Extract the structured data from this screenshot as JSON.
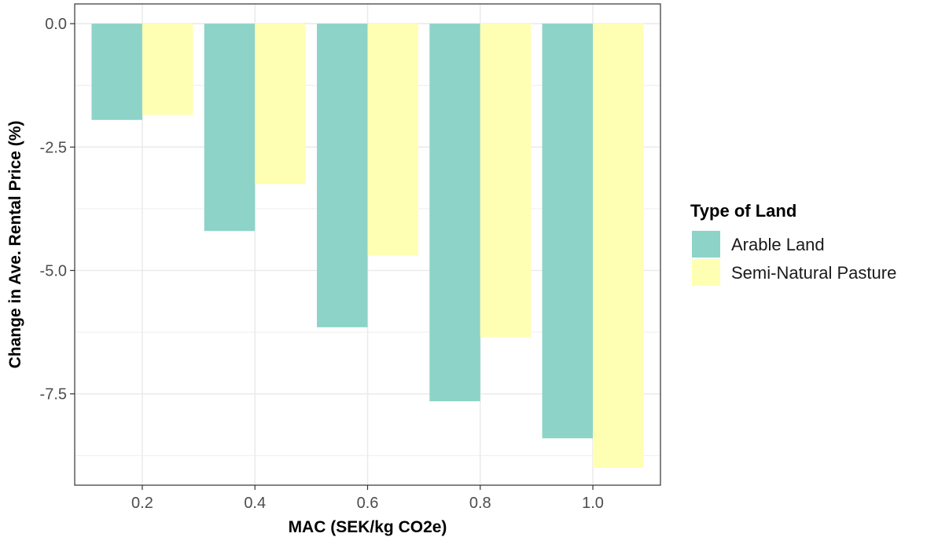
{
  "chart_data": {
    "type": "bar",
    "title": "",
    "xlabel": "MAC (SEK/kg CO2e)",
    "ylabel": "Change in Ave. Rental Price (%)",
    "categories": [
      "0.2",
      "0.4",
      "0.6",
      "0.8",
      "1.0"
    ],
    "ylim": [
      -9.35,
      0.4
    ],
    "y_ticks": [
      0.0,
      -2.5,
      -5.0,
      -7.5
    ],
    "y_tick_labels": [
      "0.0",
      "-2.5",
      "-5.0",
      "-7.5"
    ],
    "grid": true,
    "legend_position": "right",
    "legend_title": "Type of Land",
    "series": [
      {
        "name": "Arable Land",
        "color": "#8dd3c7",
        "values": [
          -1.95,
          -4.2,
          -6.15,
          -7.65,
          -8.4
        ]
      },
      {
        "name": "Semi-Natural Pasture",
        "color": "#ffffb3",
        "values": [
          -1.85,
          -3.25,
          -4.7,
          -6.35,
          -9.0
        ]
      }
    ]
  }
}
